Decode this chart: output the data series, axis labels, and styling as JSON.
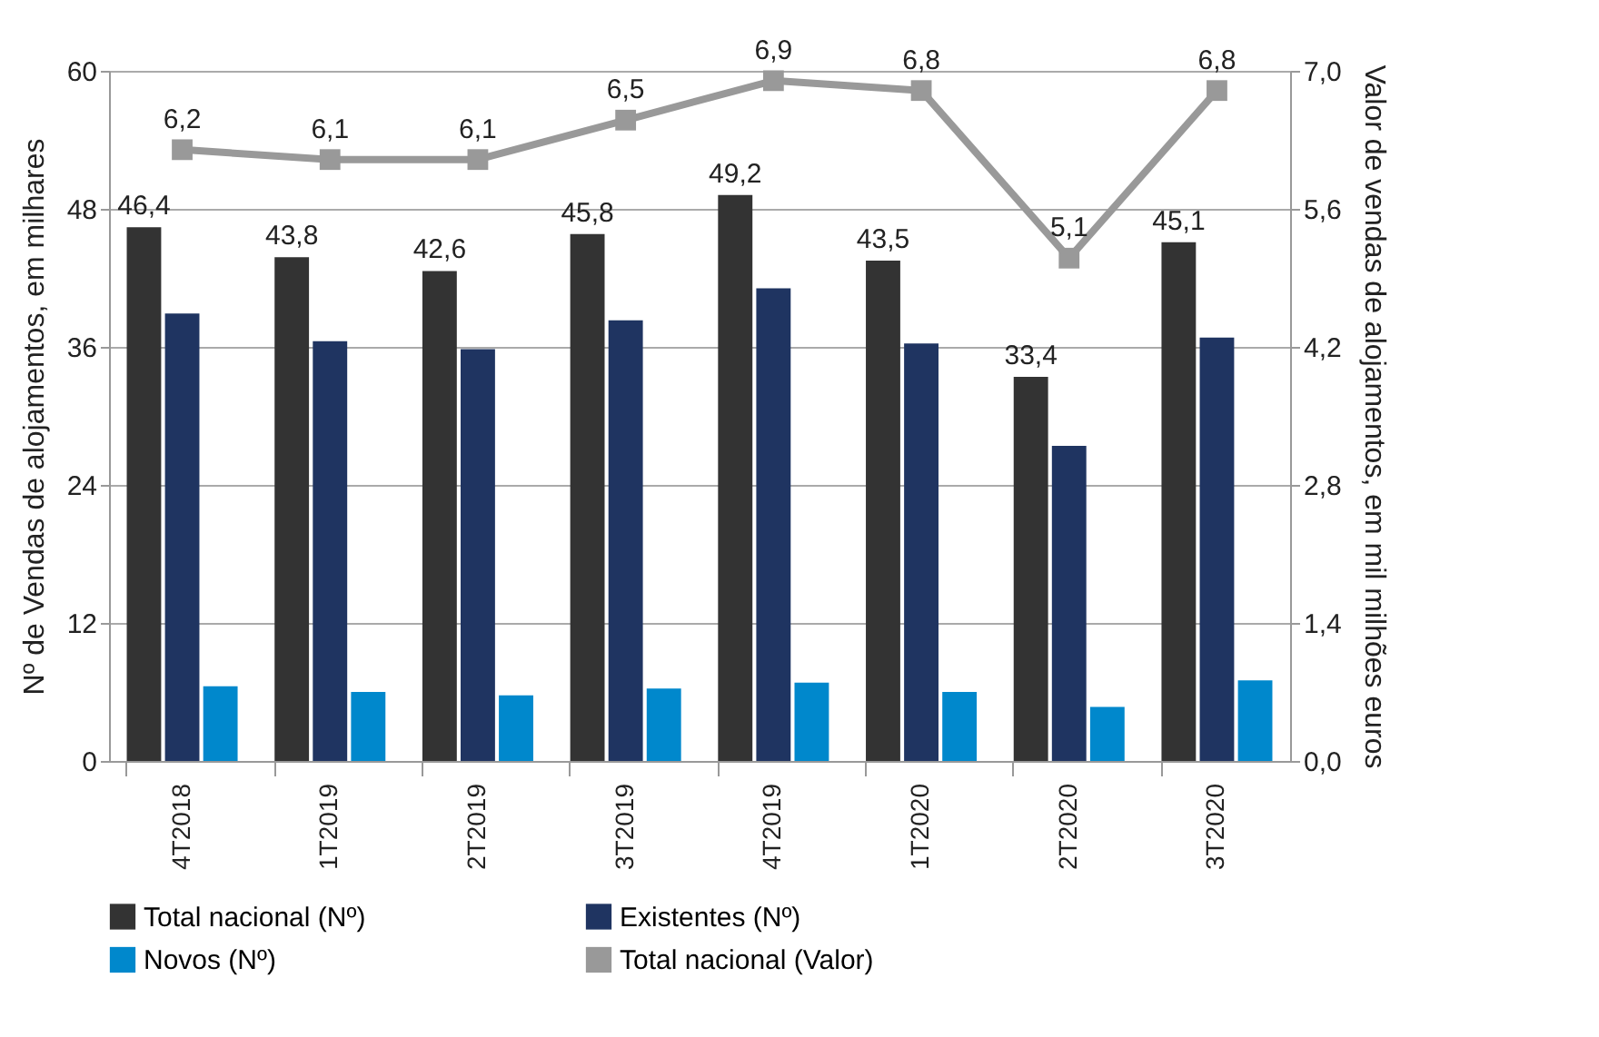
{
  "chart_data": {
    "type": "bar",
    "categories": [
      "4T2018",
      "1T2019",
      "2T2019",
      "3T2019",
      "4T2019",
      "1T2020",
      "2T2020",
      "3T2020"
    ],
    "ylabel": "Nº de Vendas de alojamentos, em milhares",
    "y2label": "Valor de vendas de alojamentos, em mil milhões euros",
    "ylim": [
      0,
      60
    ],
    "yticks": [
      0,
      12,
      24,
      36,
      48,
      60
    ],
    "y2lim": [
      0,
      7
    ],
    "y2ticks": [
      {
        "value": 0,
        "label": "0,0"
      },
      {
        "value": 1.4,
        "label": "1,4"
      },
      {
        "value": 2.8,
        "label": "2,8"
      },
      {
        "value": 4.2,
        "label": "4,2"
      },
      {
        "value": 5.6,
        "label": "5,6"
      },
      {
        "value": 7,
        "label": "7,0"
      }
    ],
    "grid": "y",
    "legend": "bottom",
    "series": [
      {
        "name": "Total nacional (Nº)",
        "color": "#333333",
        "values": [
          46.4,
          43.8,
          42.6,
          45.8,
          49.2,
          43.5,
          33.4,
          45.1
        ],
        "value_labels": [
          "46,4",
          "43,8",
          "42,6",
          "45,8",
          "49,2",
          "43,5",
          "33,4",
          "45,1"
        ]
      },
      {
        "name": "Existentes (Nº)",
        "color": "#1f3461",
        "values": [
          38.9,
          36.5,
          35.8,
          38.3,
          41.1,
          36.3,
          27.4,
          36.8
        ]
      },
      {
        "name": "Novos (Nº)",
        "color": "#0088cc",
        "values": [
          6.5,
          6.0,
          5.7,
          6.3,
          6.8,
          6.0,
          4.7,
          7.0
        ]
      },
      {
        "name": "Total nacional (Valor)",
        "type": "line",
        "axis": "y2",
        "marker": "square",
        "color": "#999999",
        "values": [
          6.2,
          6.1,
          6.1,
          6.5,
          6.9,
          6.8,
          5.1,
          6.8
        ],
        "value_labels": [
          "6,2",
          "6,1",
          "6,1",
          "6,5",
          "6,9",
          "6,8",
          "5,1",
          "6,8"
        ]
      }
    ]
  }
}
